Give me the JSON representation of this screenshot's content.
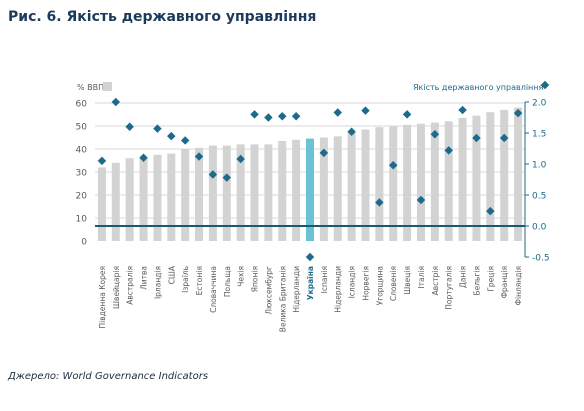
{
  "page": {
    "title": "Рис. 6. Якість державного управління",
    "source": "Джерело: World Governance Indicators"
  },
  "chart_data": {
    "type": "bar",
    "left_axis": {
      "label": "% ВВП",
      "ylim": [
        0,
        60
      ],
      "ticks": [
        0,
        10,
        20,
        30,
        40,
        50,
        60
      ]
    },
    "right_axis": {
      "label": "Якість державного управління",
      "ylim": [
        -0.5,
        2.0
      ],
      "ticks": [
        -0.5,
        0.0,
        0.5,
        1.0,
        1.5,
        2.0
      ]
    },
    "categories": [
      "Південна Корея",
      "Швейцарія",
      "Австралія",
      "Литва",
      "Ірландія",
      "США",
      "Ізраїль",
      "Естонія",
      "Словаччина",
      "Польща",
      "Чехія",
      "Японія",
      "Люксембург",
      "Велика Британія",
      "Нідерланди",
      "Україна",
      "Іспанія",
      "Нідерланди",
      "Ісландія",
      "Норвегія",
      "Угорщина",
      "Словенія",
      "Швеція",
      "Італія",
      "Австрія",
      "Португалія",
      "Данія",
      "Бельгія",
      "Греція",
      "Франція",
      "Фінляндія"
    ],
    "highlight_category": "Україна",
    "series": [
      {
        "values": [
          32,
          34,
          36,
          36,
          37.5,
          38,
          40,
          40.5,
          41.5,
          41.5,
          42,
          42,
          42,
          43.5,
          44,
          44.5,
          45,
          45.5,
          47,
          48.5,
          49.5,
          50,
          50.5,
          51,
          51.5,
          52,
          53.5,
          54.5,
          56,
          57,
          58
        ]
      },
      {
        "name": "Якість державного управління",
        "values": [
          1.05,
          2.0,
          1.6,
          1.1,
          1.57,
          1.45,
          1.38,
          1.12,
          0.83,
          0.78,
          1.08,
          1.8,
          1.75,
          1.77,
          1.77,
          -0.5,
          1.18,
          1.83,
          1.52,
          1.86,
          0.38,
          0.98,
          1.8,
          0.42,
          1.48,
          1.22,
          1.87,
          1.42,
          0.24,
          1.42,
          1.82
        ]
      }
    ],
    "colors": {
      "bar": "#d3d3d3",
      "bar_highlight": "#6ac2d6",
      "marker": "#1e6a8a",
      "grid": "#d9d9d9",
      "zero_line": "#1d5777",
      "axis": "#1e6a8a",
      "title": "#1d3a5c"
    },
    "grid": true
  }
}
